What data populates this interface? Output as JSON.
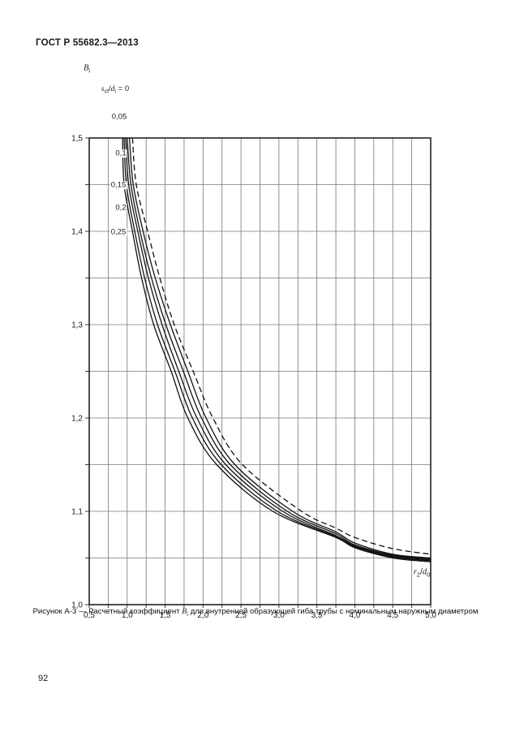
{
  "page": {
    "header_title": "ГОСТ Р 55682.3—2013",
    "page_number": "92"
  },
  "caption": {
    "prefix": "Рисунок А-3 — Расчетный коэффициент ",
    "symbol": "B",
    "symbol_sub": "i",
    "suffix": " для внутренней образующей гиба трубы с номинальным наружным диаметром"
  },
  "chart_data": {
    "type": "line",
    "title": "",
    "xlabel": "r2/d0",
    "ylabel": "Bi",
    "xlabel_parts": {
      "var1": "r",
      "sub1": "2",
      "slash": "/",
      "var2": "d",
      "sub2": "0"
    },
    "ylabel_parts": {
      "var": "B",
      "sub": "i"
    },
    "param_label_parts": {
      "var1": "s",
      "sub1": "ct",
      "slash": "/",
      "var2": "d",
      "sub2": "i",
      "eq": " = 0"
    },
    "xlim": [
      0.5,
      5.0
    ],
    "ylim": [
      1.0,
      1.5
    ],
    "grid": {
      "x_step": 0.25,
      "y_step": 0.05,
      "visible": true
    },
    "legend_position": "labels-on-curves",
    "x_ticks": [
      {
        "v": 0.5,
        "label": "0,5"
      },
      {
        "v": 1.0,
        "label": "1,0"
      },
      {
        "v": 1.5,
        "label": "1,5"
      },
      {
        "v": 2.0,
        "label": "2,0"
      },
      {
        "v": 2.5,
        "label": "2,5"
      },
      {
        "v": 3.0,
        "label": "3,0"
      },
      {
        "v": 3.5,
        "label": "3,5"
      },
      {
        "v": 4.0,
        "label": "4,0"
      },
      {
        "v": 4.5,
        "label": "4,5"
      },
      {
        "v": 5.0,
        "label": "5,0"
      }
    ],
    "y_ticks": [
      {
        "v": 1.0,
        "label": "1,0"
      },
      {
        "v": 1.1,
        "label": "1,1"
      },
      {
        "v": 1.2,
        "label": "1,2"
      },
      {
        "v": 1.3,
        "label": "1,3"
      },
      {
        "v": 1.4,
        "label": "1,4"
      },
      {
        "v": 1.5,
        "label": "1,5"
      }
    ],
    "series": [
      {
        "name": "s_ct/d_i = 0",
        "label": "0",
        "dash": true,
        "points": [
          [
            1.07,
            1.5
          ],
          [
            1.12,
            1.45
          ],
          [
            1.27,
            1.4
          ],
          [
            1.43,
            1.35
          ],
          [
            1.62,
            1.3
          ],
          [
            1.87,
            1.25
          ],
          [
            2.13,
            1.2
          ],
          [
            2.52,
            1.15
          ],
          [
            3.3,
            1.1
          ],
          [
            3.75,
            1.082
          ],
          [
            4.0,
            1.072
          ],
          [
            4.5,
            1.06
          ],
          [
            5.0,
            1.054
          ]
        ]
      },
      {
        "name": "s_ct/d_i = 0,05",
        "label": "0,05",
        "dash": false,
        "points": [
          [
            1.03,
            1.5
          ],
          [
            1.08,
            1.45
          ],
          [
            1.21,
            1.4
          ],
          [
            1.37,
            1.35
          ],
          [
            1.57,
            1.3
          ],
          [
            1.8,
            1.25
          ],
          [
            2.04,
            1.2
          ],
          [
            2.42,
            1.15
          ],
          [
            3.18,
            1.1
          ],
          [
            3.75,
            1.078
          ],
          [
            4.0,
            1.066
          ],
          [
            4.5,
            1.054
          ],
          [
            5.0,
            1.05
          ]
        ]
      },
      {
        "name": "s_ct/d_i = 0,1",
        "label": "0,1",
        "dash": false,
        "points": [
          [
            1.0,
            1.5
          ],
          [
            1.05,
            1.45
          ],
          [
            1.17,
            1.4
          ],
          [
            1.32,
            1.35
          ],
          [
            1.51,
            1.3
          ],
          [
            1.74,
            1.25
          ],
          [
            1.98,
            1.2
          ],
          [
            2.36,
            1.15
          ],
          [
            3.11,
            1.1
          ],
          [
            3.75,
            1.076
          ],
          [
            4.0,
            1.064
          ],
          [
            4.5,
            1.053
          ],
          [
            5.0,
            1.049
          ]
        ]
      },
      {
        "name": "s_ct/d_i = 0,15",
        "label": "0,15",
        "dash": false,
        "points": [
          [
            0.98,
            1.5
          ],
          [
            1.02,
            1.45
          ],
          [
            1.14,
            1.4
          ],
          [
            1.28,
            1.35
          ],
          [
            1.46,
            1.3
          ],
          [
            1.68,
            1.25
          ],
          [
            1.92,
            1.2
          ],
          [
            2.3,
            1.15
          ],
          [
            3.05,
            1.1
          ],
          [
            3.75,
            1.074
          ],
          [
            4.0,
            1.063
          ],
          [
            4.5,
            1.052
          ],
          [
            5.0,
            1.048
          ]
        ]
      },
      {
        "name": "s_ct/d_i = 0,2",
        "label": "0,2",
        "dash": false,
        "points": [
          [
            0.96,
            1.5
          ],
          [
            0.99,
            1.45
          ],
          [
            1.1,
            1.4
          ],
          [
            1.23,
            1.35
          ],
          [
            1.4,
            1.3
          ],
          [
            1.63,
            1.25
          ],
          [
            1.86,
            1.2
          ],
          [
            2.24,
            1.15
          ],
          [
            2.98,
            1.1
          ],
          [
            3.75,
            1.073
          ],
          [
            4.0,
            1.062
          ],
          [
            4.5,
            1.051
          ],
          [
            5.0,
            1.047
          ]
        ]
      },
      {
        "name": "s_ct/d_i = 0,25",
        "label": "0,25",
        "dash": false,
        "points": [
          [
            0.94,
            1.5
          ],
          [
            0.96,
            1.45
          ],
          [
            1.07,
            1.4
          ],
          [
            1.19,
            1.35
          ],
          [
            1.35,
            1.3
          ],
          [
            1.58,
            1.25
          ],
          [
            1.8,
            1.2
          ],
          [
            2.18,
            1.15
          ],
          [
            2.92,
            1.1
          ],
          [
            3.75,
            1.072
          ],
          [
            4.0,
            1.061
          ],
          [
            4.5,
            1.05
          ],
          [
            5.0,
            1.046
          ]
        ]
      }
    ],
    "colors": {
      "curve": "#111111",
      "grid": "#777777",
      "frame": "#222222",
      "text": "#1a1a1a"
    }
  }
}
